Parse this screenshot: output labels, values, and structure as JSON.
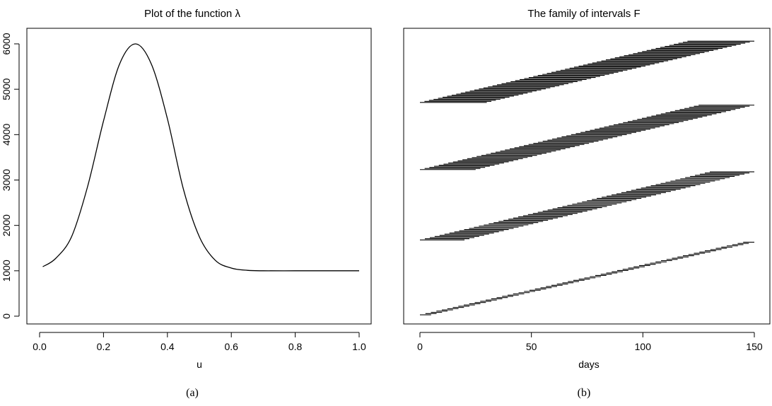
{
  "chart_data": [
    {
      "type": "line",
      "title": "Plot of the function λ",
      "xlabel": "u",
      "ylabel": "",
      "xlim": [
        0,
        1
      ],
      "ylim": [
        0,
        6000
      ],
      "xticks": [
        0.0,
        0.2,
        0.4,
        0.6,
        0.8,
        1.0
      ],
      "xtick_labels": [
        "0.0",
        "0.2",
        "0.4",
        "0.6",
        "0.8",
        "1.0"
      ],
      "yticks": [
        0,
        1000,
        2000,
        3000,
        4000,
        5000,
        6000
      ],
      "ytick_labels": [
        "0",
        "1000",
        "2000",
        "3000",
        "4000",
        "5000",
        "6000"
      ],
      "grid": false,
      "series": [
        {
          "x": [
            0.01,
            0.05,
            0.1,
            0.15,
            0.2,
            0.25,
            0.3,
            0.35,
            0.4,
            0.45,
            0.5,
            0.55,
            0.6,
            0.65,
            0.7,
            0.8,
            0.9,
            1.0
          ],
          "y": [
            1090,
            1270,
            1750,
            2850,
            4300,
            5550,
            6000,
            5550,
            4350,
            2800,
            1750,
            1230,
            1060,
            1010,
            1000,
            1000,
            1000,
            1000
          ]
        }
      ],
      "caption": "(a)"
    },
    {
      "type": "interval",
      "title": "The family of intervals F",
      "xlabel": "days",
      "ylabel": "",
      "xlim": [
        0,
        150
      ],
      "xticks": [
        0,
        50,
        100,
        150
      ],
      "xtick_labels": [
        "0",
        "50",
        "100",
        "150"
      ],
      "grid": false,
      "groups": [
        {
          "first_start": 0,
          "first_end": 5,
          "last_start": 145,
          "last_end": 150,
          "y_start": 30,
          "y_end": 1630
        },
        {
          "first_start": 0,
          "first_end": 20,
          "last_start": 130,
          "last_end": 150,
          "y_start": 1680,
          "y_end": 3180
        },
        {
          "first_start": 0,
          "first_end": 25,
          "last_start": 125,
          "last_end": 150,
          "y_start": 3230,
          "y_end": 4650
        },
        {
          "first_start": 0,
          "first_end": 30,
          "last_start": 120,
          "last_end": 150,
          "y_start": 4710,
          "y_end": 6060
        }
      ],
      "caption": "(b)"
    }
  ]
}
